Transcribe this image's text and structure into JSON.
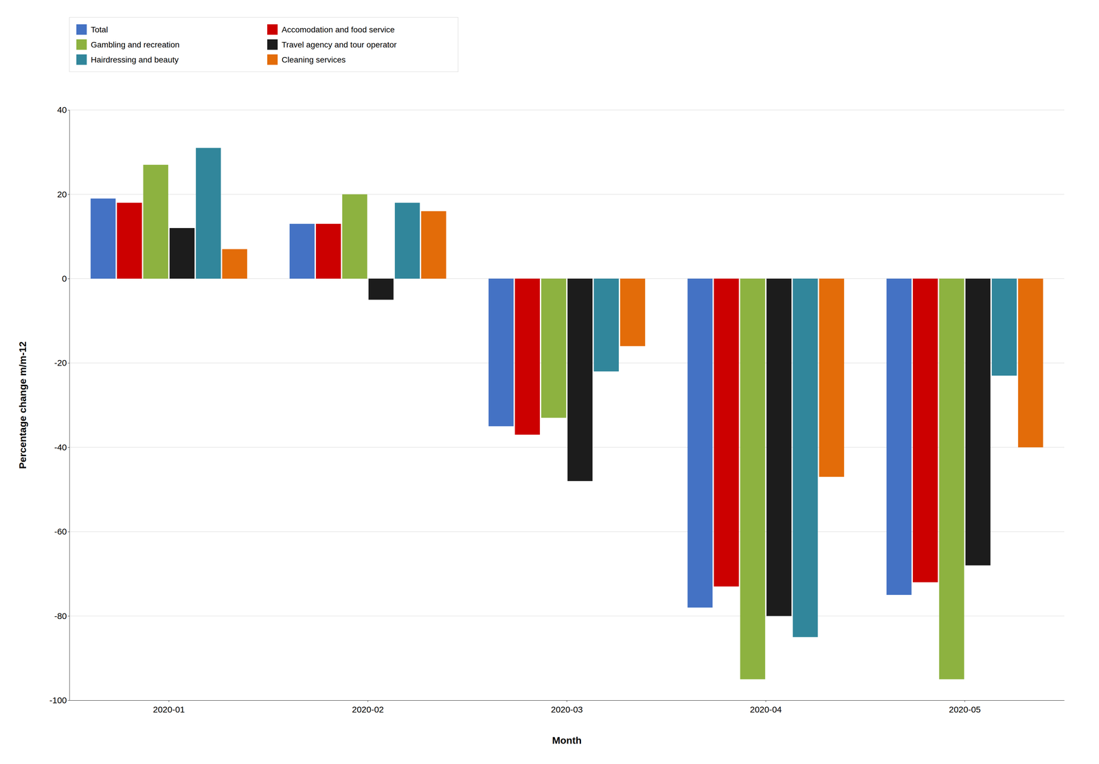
{
  "chart_data": {
    "type": "bar",
    "categories": [
      "2020-01",
      "2020-02",
      "2020-03",
      "2020-04",
      "2020-05"
    ],
    "series": [
      {
        "name": "Total",
        "color": "#4472C4",
        "values": [
          19,
          13,
          -35,
          -78,
          -75
        ]
      },
      {
        "name": "Accomodation and food service",
        "color": "#CC0000",
        "values": [
          18,
          13,
          -37,
          -73,
          -72
        ]
      },
      {
        "name": "Gambling and recreation",
        "color": "#8DB240",
        "values": [
          27,
          20,
          -33,
          -95,
          -95
        ]
      },
      {
        "name": "Travel agency and tour operator",
        "color": "#1C1C1C",
        "values": [
          12,
          -5,
          -48,
          -80,
          -68
        ]
      },
      {
        "name": "Hairdressing and beauty",
        "color": "#31869B",
        "values": [
          31,
          18,
          -22,
          -85,
          -23
        ]
      },
      {
        "name": "Cleaning services",
        "color": "#E36C09",
        "values": [
          7,
          16,
          -16,
          -47,
          -40
        ]
      }
    ],
    "xlabel": "Month",
    "ylabel": "Percentage change m/m-12",
    "ylim": [
      -100,
      40
    ],
    "yticks": [
      -100,
      -80,
      -60,
      -40,
      -20,
      0,
      20,
      40
    ],
    "grid": true,
    "legend": "upper left"
  }
}
